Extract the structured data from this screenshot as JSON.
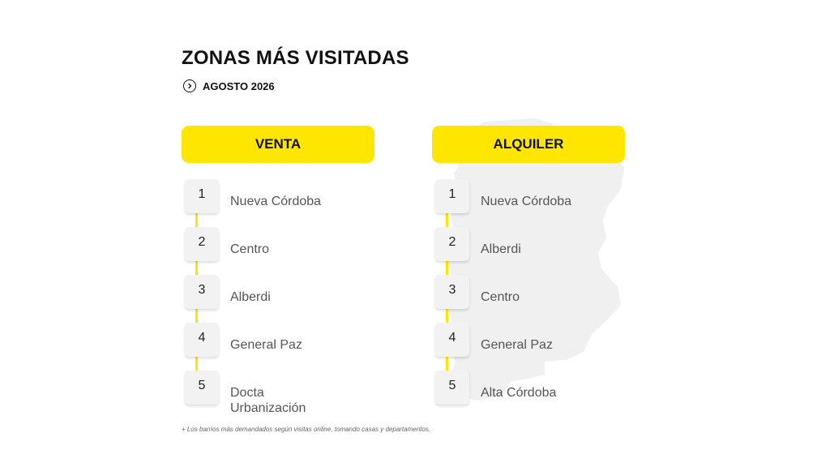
{
  "page": {
    "title": "ZONAS MÁS VISITADAS",
    "period": "AGOSTO 2026",
    "footnote": "+ Los barrios más demandados según visitas online, tomando casas y departamentos."
  },
  "colors": {
    "accent": "#ffe600",
    "text": "#111111",
    "muted": "#555555",
    "box": "#f2f2f2",
    "map": "#f0f0f0"
  },
  "icons": {
    "period": "chevron-right-circle-icon",
    "background": "cordoba-province-map"
  },
  "venta": {
    "label": "VENTA",
    "items": [
      {
        "rank": "1",
        "zone": "Nueva Córdoba"
      },
      {
        "rank": "2",
        "zone": "Centro"
      },
      {
        "rank": "3",
        "zone": "Alberdi"
      },
      {
        "rank": "4",
        "zone": "General Paz"
      },
      {
        "rank": "5",
        "zone": "Docta Urbanización"
      }
    ]
  },
  "alquiler": {
    "label": "ALQUILER",
    "items": [
      {
        "rank": "1",
        "zone": "Nueva Córdoba"
      },
      {
        "rank": "2",
        "zone": "Alberdi"
      },
      {
        "rank": "3",
        "zone": "Centro"
      },
      {
        "rank": "4",
        "zone": "General Paz"
      },
      {
        "rank": "5",
        "zone": "Alta Córdoba"
      }
    ]
  }
}
